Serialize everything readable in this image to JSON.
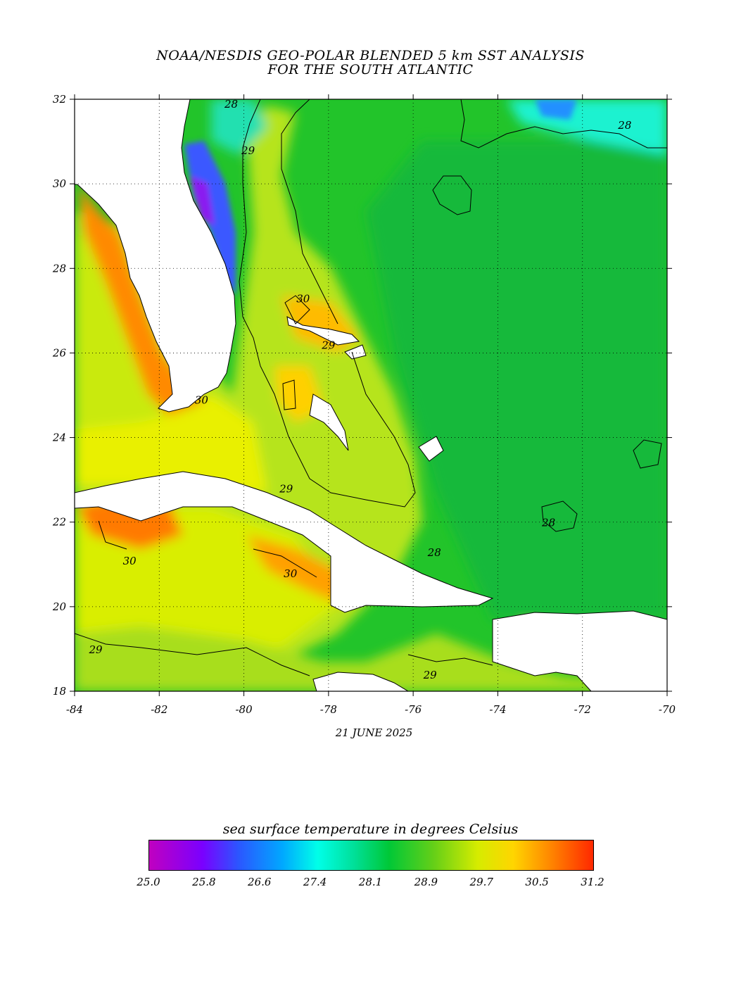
{
  "title": {
    "line1": "NOAA/NESDIS GEO-POLAR BLENDED 5 km SST ANALYSIS",
    "line2": "FOR THE SOUTH ATLANTIC"
  },
  "date": "21 JUNE 2025",
  "map": {
    "lon_range": [
      -84,
      -70
    ],
    "lat_range": [
      18,
      32
    ],
    "x_ticks": [
      "-84",
      "-82",
      "-80",
      "-78",
      "-76",
      "-74",
      "-72",
      "-70"
    ],
    "y_ticks": [
      "32",
      "30",
      "28",
      "26",
      "24",
      "22",
      "20",
      "18"
    ],
    "contour_labels": [
      {
        "text": "28",
        "lon": -80.3,
        "lat": 31.8
      },
      {
        "text": "28",
        "lon": -71.0,
        "lat": 31.3
      },
      {
        "text": "29",
        "lon": -79.9,
        "lat": 30.7
      },
      {
        "text": "30",
        "lon": -78.6,
        "lat": 27.2
      },
      {
        "text": "29",
        "lon": -78.0,
        "lat": 26.1
      },
      {
        "text": "30",
        "lon": -81.0,
        "lat": 24.8
      },
      {
        "text": "29",
        "lon": -79.0,
        "lat": 22.7
      },
      {
        "text": "28",
        "lon": -72.8,
        "lat": 21.9
      },
      {
        "text": "30",
        "lon": -82.7,
        "lat": 21.0
      },
      {
        "text": "28",
        "lon": -75.5,
        "lat": 21.2
      },
      {
        "text": "30",
        "lon": -78.9,
        "lat": 20.7
      },
      {
        "text": "29",
        "lon": -83.5,
        "lat": 18.9
      },
      {
        "text": "29",
        "lon": -75.6,
        "lat": 18.3
      }
    ],
    "colors": {
      "land": "#ffffff",
      "ocean_base": "#22c42a"
    }
  },
  "colorbar": {
    "title": "sea surface temperature in degrees Celsius",
    "ticks": [
      "25.0",
      "25.8",
      "26.6",
      "27.4",
      "28.1",
      "28.9",
      "29.7",
      "30.5",
      "31.2"
    ],
    "min": 25.0,
    "max": 31.2
  }
}
